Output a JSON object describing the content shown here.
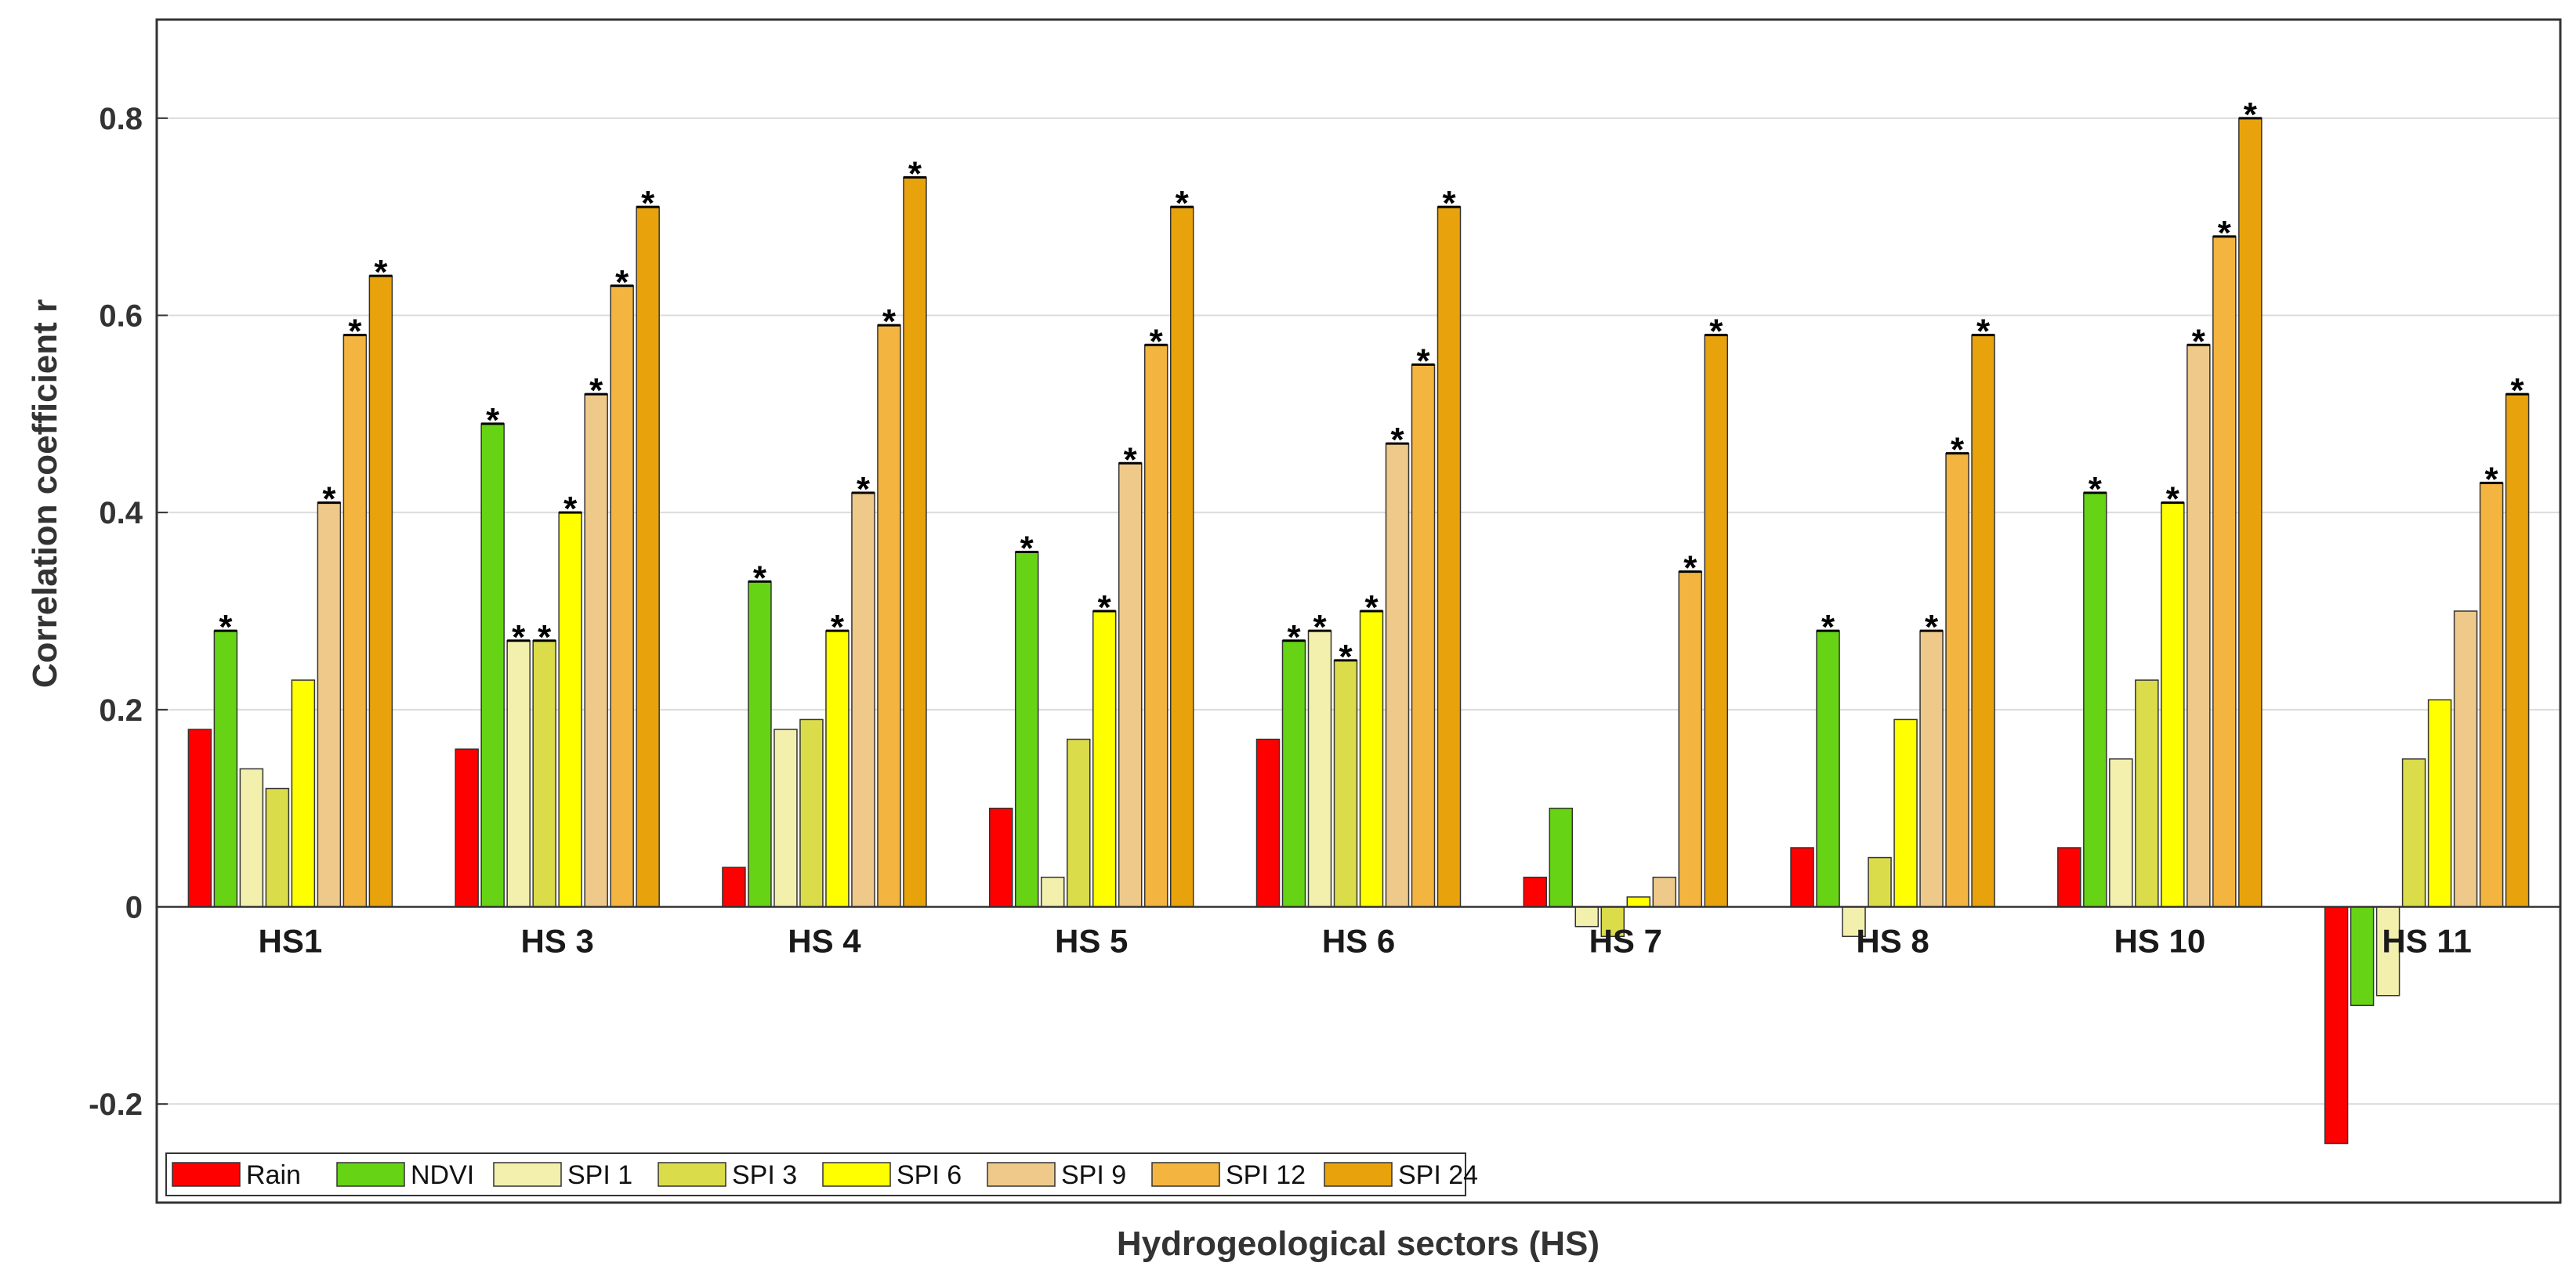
{
  "chart_data": {
    "type": "bar",
    "title": "",
    "xlabel": "Hydrogeological sectors (HS)",
    "ylabel": "Correlation coefficient r",
    "ylim": [
      -0.3,
      0.9
    ],
    "yticks": [
      -0.2,
      0,
      0.2,
      0.4,
      0.6,
      0.8
    ],
    "ytick_labels": [
      "-0.2",
      "0",
      "0.2",
      "0.4",
      "0.6",
      "0.8"
    ],
    "grid": "horizontal",
    "legend_position": "bottom-left",
    "significance_marker": "*",
    "categories": [
      "HS1",
      "HS 3",
      "HS 4",
      "HS 5",
      "HS 6",
      "HS 7",
      "HS 8",
      "HS 10",
      "HS 11"
    ],
    "series": [
      {
        "name": "Rain",
        "color": "#ff0000",
        "values": [
          0.18,
          0.16,
          0.04,
          0.1,
          0.17,
          0.03,
          0.06,
          0.06,
          -0.24
        ],
        "significant": [
          false,
          false,
          false,
          false,
          false,
          false,
          false,
          false,
          false
        ]
      },
      {
        "name": "NDVI",
        "color": "#66d414",
        "values": [
          0.28,
          0.49,
          0.33,
          0.36,
          0.27,
          0.1,
          0.28,
          0.42,
          -0.1
        ],
        "significant": [
          true,
          true,
          true,
          true,
          true,
          false,
          true,
          true,
          false
        ]
      },
      {
        "name": "SPI 1",
        "color": "#f3f0ad",
        "values": [
          0.14,
          0.27,
          0.18,
          0.03,
          0.28,
          -0.02,
          -0.03,
          0.15,
          -0.09
        ],
        "significant": [
          false,
          true,
          false,
          false,
          true,
          false,
          false,
          false,
          false
        ]
      },
      {
        "name": "SPI 3",
        "color": "#dbdc4a",
        "values": [
          0.12,
          0.27,
          0.19,
          0.17,
          0.25,
          -0.03,
          0.05,
          0.23,
          0.15
        ],
        "significant": [
          false,
          true,
          false,
          false,
          true,
          false,
          false,
          false,
          false
        ]
      },
      {
        "name": "SPI 6",
        "color": "#ffff00",
        "values": [
          0.23,
          0.4,
          0.28,
          0.3,
          0.3,
          0.01,
          0.19,
          0.41,
          0.21
        ],
        "significant": [
          false,
          true,
          true,
          true,
          true,
          false,
          false,
          true,
          false
        ]
      },
      {
        "name": "SPI 9",
        "color": "#eec98a",
        "values": [
          0.41,
          0.52,
          0.42,
          0.45,
          0.47,
          0.03,
          0.28,
          0.57,
          0.3
        ],
        "significant": [
          true,
          true,
          true,
          true,
          true,
          false,
          true,
          true,
          false
        ]
      },
      {
        "name": "SPI 12",
        "color": "#f3b53f",
        "values": [
          0.58,
          0.63,
          0.59,
          0.57,
          0.55,
          0.34,
          0.46,
          0.68,
          0.43
        ],
        "significant": [
          true,
          true,
          true,
          true,
          true,
          true,
          true,
          true,
          true
        ]
      },
      {
        "name": "SPI 24",
        "color": "#e8a30c",
        "values": [
          0.64,
          0.71,
          0.74,
          0.71,
          0.71,
          0.58,
          0.58,
          0.8,
          0.52
        ],
        "significant": [
          true,
          true,
          true,
          true,
          true,
          true,
          true,
          true,
          true
        ]
      }
    ]
  }
}
